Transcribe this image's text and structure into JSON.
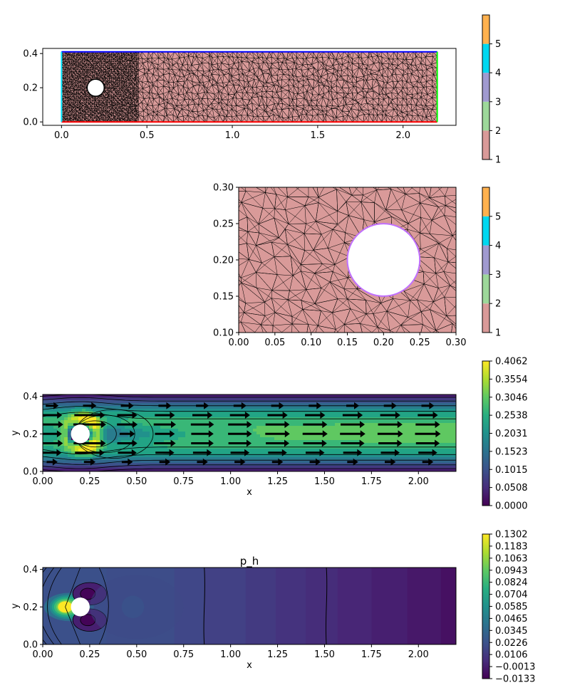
{
  "chart_data": [
    {
      "type": "heatmap",
      "id": "mesh_overview",
      "description_kind": "triangular mesh with facet markers",
      "x_ticks": [
        "0.0",
        "0.5",
        "1.0",
        "1.5",
        "2.0"
      ],
      "x_tick_values": [
        0.0,
        0.5,
        1.0,
        1.5,
        2.0
      ],
      "y_ticks": [
        "0.0",
        "0.2",
        "0.4"
      ],
      "y_tick_values": [
        0.0,
        0.2,
        0.4
      ],
      "xlim": [
        -0.11,
        2.31
      ],
      "ylim": [
        -0.02,
        0.43
      ],
      "domain": {
        "x": [
          0.0,
          2.2
        ],
        "y": [
          0.0,
          0.41
        ]
      },
      "obstacle": {
        "cx": 0.2,
        "cy": 0.2,
        "r": 0.05
      },
      "boundary_colors": {
        "bottom": "#ff0000",
        "top": "#0000ff",
        "left": "#00e5ff",
        "right": "#00ff00"
      },
      "fill_color": "#d99a99",
      "colorbar": {
        "ticks": [
          "1",
          "2",
          "3",
          "4",
          "5"
        ],
        "colors": [
          "#d99a99",
          "#9dd89a",
          "#a09ad0",
          "#00d8f0",
          "#ffb14e"
        ]
      }
    },
    {
      "type": "heatmap",
      "id": "mesh_zoom",
      "description_kind": "zoomed triangular mesh around obstacle",
      "x_ticks": [
        "0.00",
        "0.05",
        "0.10",
        "0.15",
        "0.20",
        "0.25",
        "0.30"
      ],
      "x_tick_values": [
        0.0,
        0.05,
        0.1,
        0.15,
        0.2,
        0.25,
        0.3
      ],
      "y_ticks": [
        "0.10",
        "0.15",
        "0.20",
        "0.25",
        "0.30"
      ],
      "y_tick_values": [
        0.1,
        0.15,
        0.2,
        0.25,
        0.3
      ],
      "xlim": [
        0.0,
        0.3
      ],
      "ylim": [
        0.1,
        0.3
      ],
      "obstacle": {
        "cx": 0.2,
        "cy": 0.2,
        "r": 0.05,
        "edge_color": "#c070ff"
      },
      "fill_color": "#d99a99",
      "colorbar": {
        "ticks": [
          "1",
          "2",
          "3",
          "4",
          "5"
        ],
        "colors": [
          "#d99a99",
          "#9dd89a",
          "#a09ad0",
          "#00d8f0",
          "#ffb14e"
        ]
      }
    },
    {
      "type": "heatmap",
      "id": "velocity",
      "xlabel": "x",
      "ylabel": "y",
      "x_ticks": [
        "0.00",
        "0.25",
        "0.50",
        "0.75",
        "1.00",
        "1.25",
        "1.50",
        "1.75",
        "2.00"
      ],
      "x_tick_values": [
        0.0,
        0.25,
        0.5,
        0.75,
        1.0,
        1.25,
        1.5,
        1.75,
        2.0
      ],
      "y_ticks": [
        "0.0",
        "0.2",
        "0.4"
      ],
      "y_tick_values": [
        0.0,
        0.2,
        0.4
      ],
      "xlim": [
        0.0,
        2.2
      ],
      "ylim": [
        0.0,
        0.41
      ],
      "obstacle": {
        "cx": 0.2,
        "cy": 0.2,
        "r": 0.05
      },
      "max_speed": 0.4062,
      "quiver": true,
      "colorbar": {
        "colormap": "viridis",
        "ticks": [
          "0.0000",
          "0.0508",
          "0.1015",
          "0.1523",
          "0.2031",
          "0.2538",
          "0.3046",
          "0.3554",
          "0.4062"
        ],
        "range": [
          0.0,
          0.4062
        ]
      }
    },
    {
      "type": "heatmap",
      "id": "pressure",
      "title": "p_h",
      "xlabel": "x",
      "ylabel": "y",
      "x_ticks": [
        "0.00",
        "0.25",
        "0.50",
        "0.75",
        "1.00",
        "1.25",
        "1.50",
        "1.75",
        "2.00"
      ],
      "x_tick_values": [
        0.0,
        0.25,
        0.5,
        0.75,
        1.0,
        1.25,
        1.5,
        1.75,
        2.0
      ],
      "y_ticks": [
        "0.0",
        "0.2",
        "0.4"
      ],
      "y_tick_values": [
        0.0,
        0.2,
        0.4
      ],
      "xlim": [
        0.0,
        2.2
      ],
      "ylim": [
        0.0,
        0.41
      ],
      "obstacle": {
        "cx": 0.2,
        "cy": 0.2,
        "r": 0.05
      },
      "colorbar": {
        "colormap": "viridis",
        "ticks": [
          "−0.0133",
          "−0.0013",
          "0.0106",
          "0.0226",
          "0.0345",
          "0.0465",
          "0.0585",
          "0.0704",
          "0.0824",
          "0.0943",
          "0.1063",
          "0.1183",
          "0.1302"
        ],
        "range": [
          -0.0133,
          0.1302
        ]
      },
      "band_levels": [
        0.022,
        0.02,
        0.017,
        0.014,
        0.011,
        0.008,
        0.005,
        0.002,
        -0.001,
        -0.004,
        -0.007
      ]
    }
  ]
}
